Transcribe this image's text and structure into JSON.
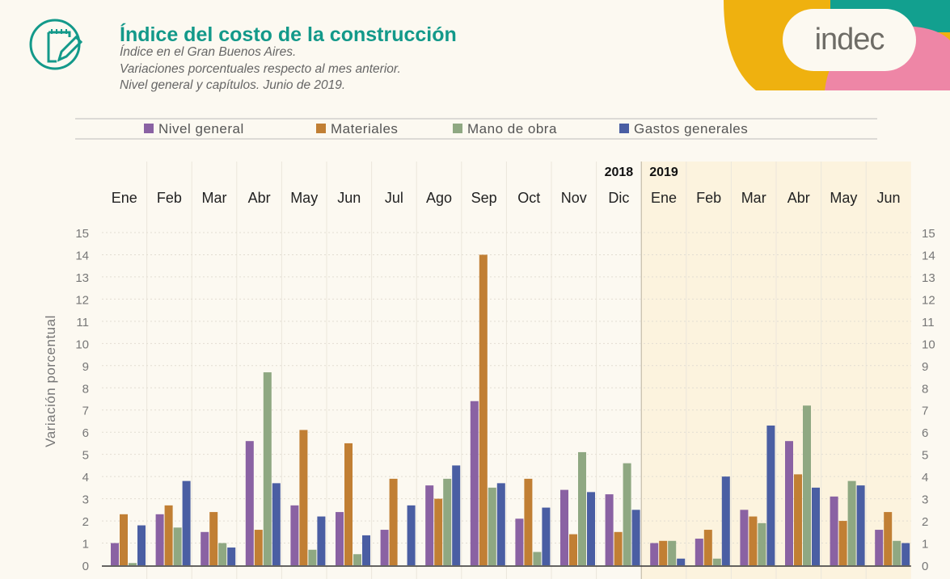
{
  "header": {
    "title": "Índice del costo de la construcción",
    "subtitle_lines": [
      "Índice en el Gran Buenos Aires.",
      "Variaciones porcentuales respecto al mes anterior.",
      "Nivel general y capítulos. Junio de 2019."
    ],
    "logo_text": "indec",
    "icon": "notepad-pencil-icon"
  },
  "colors": {
    "accent": "#13998a",
    "logo_yellow": "#efb10f",
    "logo_teal": "#12a08f",
    "logo_pink": "#ee86a6"
  },
  "chart_data": {
    "type": "bar",
    "ylabel": "Variación porcentual",
    "ylim": [
      0,
      15
    ],
    "yticks": [
      0,
      1,
      2,
      3,
      4,
      5,
      6,
      7,
      8,
      9,
      10,
      11,
      12,
      13,
      14,
      15
    ],
    "grid": true,
    "legend_position": "top",
    "year_labels": [
      {
        "label": "2018",
        "index": 11
      },
      {
        "label": "2019",
        "index": 12
      }
    ],
    "categories": [
      "Ene",
      "Feb",
      "Mar",
      "Abr",
      "May",
      "Jun",
      "Jul",
      "Ago",
      "Sep",
      "Oct",
      "Nov",
      "Dic",
      "Ene",
      "Feb",
      "Mar",
      "Abr",
      "May",
      "Jun"
    ],
    "series": [
      {
        "name": "Nivel general",
        "color": "#8a62a3",
        "values": [
          1.0,
          2.3,
          1.5,
          5.6,
          2.7,
          2.4,
          1.6,
          3.6,
          7.4,
          2.1,
          3.4,
          3.2,
          1.0,
          1.2,
          2.5,
          5.6,
          3.1,
          1.6
        ]
      },
      {
        "name": "Materiales",
        "color": "#c17f34",
        "values": [
          2.3,
          2.7,
          2.4,
          1.6,
          6.1,
          5.5,
          3.9,
          3.0,
          14.0,
          3.9,
          1.4,
          1.5,
          1.1,
          1.6,
          2.2,
          4.1,
          2.0,
          2.4
        ]
      },
      {
        "name": "Mano de obra",
        "color": "#8fa882",
        "values": [
          0.1,
          1.7,
          1.0,
          8.7,
          0.7,
          0.5,
          0.0,
          3.9,
          3.5,
          0.6,
          5.1,
          4.6,
          1.1,
          0.3,
          1.9,
          7.2,
          3.8,
          1.1
        ]
      },
      {
        "name": "Gastos generales",
        "color": "#4a5ea3",
        "values": [
          1.8,
          3.8,
          0.8,
          3.7,
          2.2,
          1.35,
          2.7,
          4.5,
          3.7,
          2.6,
          3.3,
          2.5,
          0.3,
          4.0,
          6.3,
          3.5,
          3.6,
          1.0
        ]
      }
    ]
  }
}
